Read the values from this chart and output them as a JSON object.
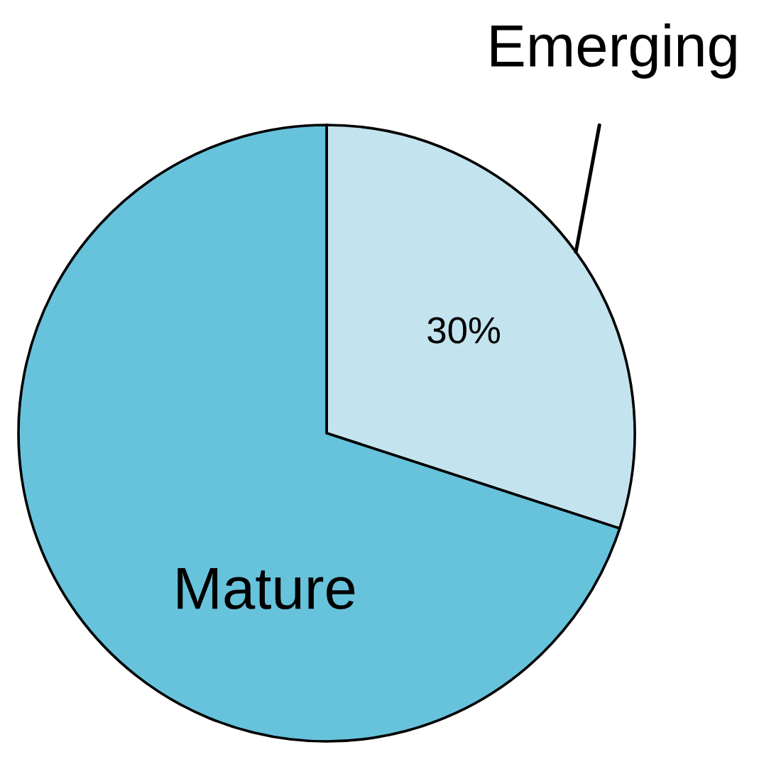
{
  "chart_data": {
    "type": "pie",
    "categories": [
      "Emerging",
      "Mature"
    ],
    "values": [
      30,
      70
    ],
    "colors": [
      "#c3e4ee",
      "#67c3dc"
    ],
    "value_labels": [
      "30%",
      null
    ]
  }
}
